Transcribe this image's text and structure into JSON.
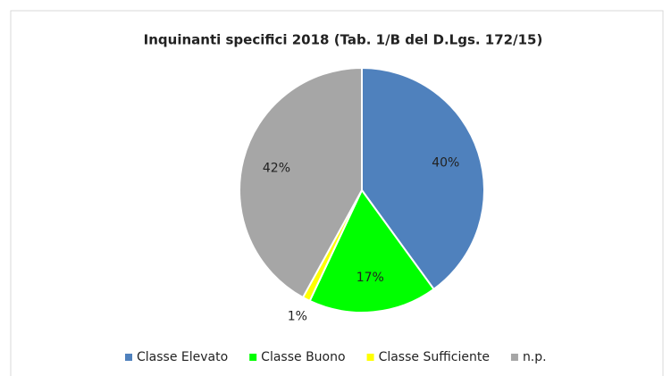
{
  "chart_data": {
    "type": "pie",
    "title": "Inquinanti specifici 2018 (Tab. 1/B del D.Lgs. 172/15)",
    "categories": [
      "Classe Elevato",
      "Classe Buono",
      "Classe Sufficiente",
      "n.p."
    ],
    "values": [
      40,
      17,
      1,
      42
    ],
    "value_labels": [
      "40%",
      "17%",
      "1%",
      "42%"
    ],
    "colors": [
      "#4f81bd",
      "#00ff00",
      "#ffff00",
      "#a6a6a6"
    ],
    "legend": "bottom"
  }
}
